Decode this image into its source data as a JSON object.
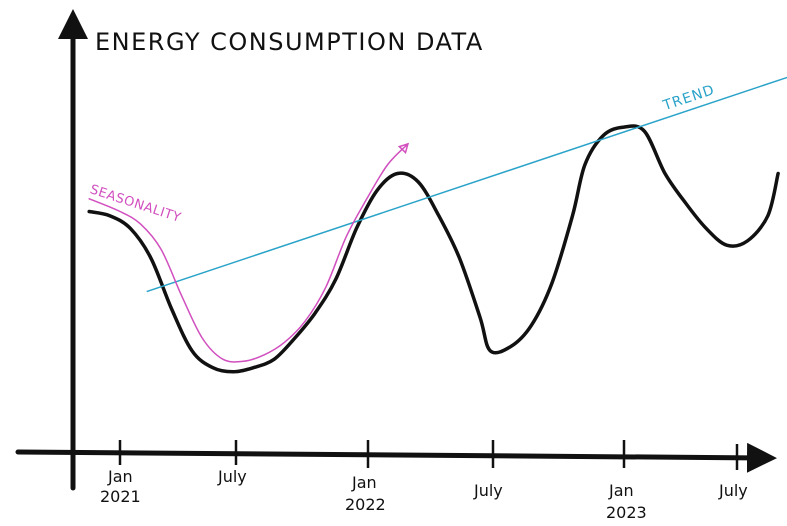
{
  "chart_data": {
    "type": "line",
    "title": "Energy Consumption Data",
    "xlabel": "",
    "ylabel": "",
    "grid": false,
    "ylim": [
      0,
      100
    ],
    "x_ticks": [
      {
        "label_line1": "Jan",
        "label_line2": "2021",
        "x": 0
      },
      {
        "label_line1": "July",
        "label_line2": "",
        "x": 6
      },
      {
        "label_line1": "Jan",
        "label_line2": "2022",
        "x": 12
      },
      {
        "label_line1": "July",
        "label_line2": "",
        "x": 18
      },
      {
        "label_line1": "Jan",
        "label_line2": "2023",
        "x": 24
      },
      {
        "label_line1": "July",
        "label_line2": "",
        "x": 30
      }
    ],
    "xlim": [
      -2,
      32
    ],
    "series": [
      {
        "name": "Energy Consumption",
        "color": "#111111",
        "points": [
          [
            -1.5,
            57
          ],
          [
            -0.5,
            56
          ],
          [
            0.5,
            53
          ],
          [
            1.5,
            46
          ],
          [
            2.5,
            34
          ],
          [
            3.5,
            24
          ],
          [
            4.5,
            20
          ],
          [
            5.5,
            19
          ],
          [
            6.5,
            20
          ],
          [
            7.5,
            22
          ],
          [
            8.5,
            27
          ],
          [
            9.5,
            33
          ],
          [
            10.5,
            41
          ],
          [
            11.5,
            53
          ],
          [
            12.5,
            62
          ],
          [
            13.5,
            66
          ],
          [
            14.5,
            64
          ],
          [
            15.5,
            56
          ],
          [
            16.5,
            46
          ],
          [
            17.5,
            32
          ],
          [
            18.0,
            24
          ],
          [
            19.0,
            25
          ],
          [
            20.0,
            30
          ],
          [
            21.0,
            40
          ],
          [
            22.0,
            56
          ],
          [
            22.6,
            68
          ],
          [
            23.5,
            75
          ],
          [
            24.5,
            77
          ],
          [
            25.5,
            76
          ],
          [
            26.5,
            66
          ],
          [
            27.5,
            59
          ],
          [
            28.5,
            53
          ],
          [
            29.5,
            49
          ],
          [
            30.5,
            50
          ],
          [
            31.5,
            56
          ],
          [
            32.0,
            66
          ]
        ]
      }
    ],
    "annotations": [
      {
        "label": "Seasonality",
        "color": "#d14fbf",
        "path": [
          [
            -1.5,
            60
          ],
          [
            0.0,
            57
          ],
          [
            1.0,
            54
          ],
          [
            2.0,
            48
          ],
          [
            3.0,
            37
          ],
          [
            4.0,
            27
          ],
          [
            5.0,
            22
          ],
          [
            6.0,
            21.5
          ],
          [
            7.0,
            23
          ],
          [
            8.0,
            26
          ],
          [
            9.0,
            31
          ],
          [
            10.0,
            39
          ],
          [
            11.0,
            51
          ],
          [
            12.0,
            60
          ],
          [
            13.0,
            68
          ],
          [
            14.0,
            73
          ]
        ]
      },
      {
        "label": "Trend",
        "color": "#2aa3c9",
        "from": [
          1.3,
          38
        ],
        "to": [
          33.2,
          90
        ]
      }
    ]
  }
}
